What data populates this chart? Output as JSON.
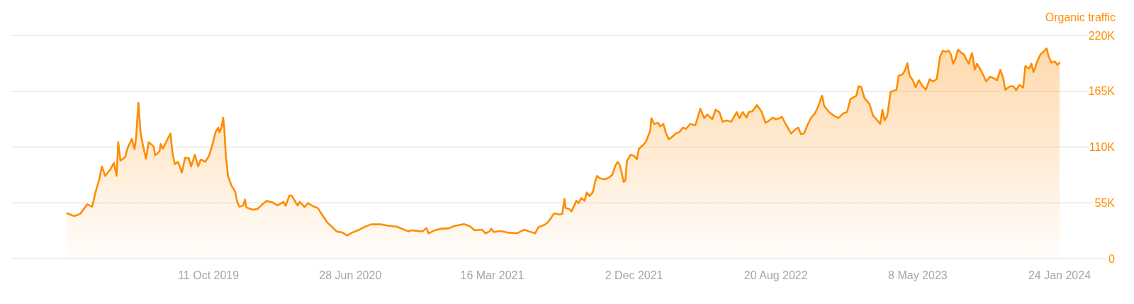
{
  "chart_data": {
    "type": "area",
    "ylabel": "Organic traffic",
    "xlim": [
      "2018-10-12",
      "2024-05-06"
    ],
    "xticks": [
      {
        "value": "2019-10-11",
        "label": "11 Oct 2019"
      },
      {
        "value": "2020-06-28",
        "label": "28 Jun 2020"
      },
      {
        "value": "2021-03-16",
        "label": "16 Mar 2021"
      },
      {
        "value": "2021-12-02",
        "label": "2 Dec 2021"
      },
      {
        "value": "2022-08-20",
        "label": "20 Aug 2022"
      },
      {
        "value": "2023-05-08",
        "label": "8 May 2023"
      },
      {
        "value": "2024-01-24",
        "label": "24 Jan 2024"
      }
    ],
    "ylim": [
      0,
      220000
    ],
    "yticks": [
      0,
      {
        "value": 55000,
        "label": "55K"
      },
      {
        "value": 110000,
        "label": "110K"
      },
      {
        "value": 165000,
        "label": "165K"
      },
      {
        "value": 220000,
        "label": "220K"
      }
    ],
    "grid": "y",
    "x": [
      "2019-01-24",
      "2019-02-06",
      "2019-02-17",
      "2019-03-02",
      "2019-03-11",
      "2019-03-17",
      "2019-03-24",
      "2019-03-29",
      "2019-04-04",
      "2019-04-14",
      "2019-04-20",
      "2019-04-25",
      "2019-04-28",
      "2019-05-02",
      "2019-05-11",
      "2019-05-15",
      "2019-05-23",
      "2019-05-28",
      "2019-05-31",
      "2019-06-04",
      "2019-06-08",
      "2019-06-12",
      "2019-06-18",
      "2019-06-23",
      "2019-07-02",
      "2019-07-05",
      "2019-07-13",
      "2019-07-15",
      "2019-07-19",
      "2019-07-28",
      "2019-08-02",
      "2019-08-06",
      "2019-08-10",
      "2019-08-16",
      "2019-08-23",
      "2019-08-29",
      "2019-09-05",
      "2019-09-09",
      "2019-09-16",
      "2019-09-22",
      "2019-09-27",
      "2019-10-05",
      "2019-10-12",
      "2019-10-18",
      "2019-10-24",
      "2019-10-29",
      "2019-10-31",
      "2019-11-04",
      "2019-11-07",
      "2019-11-09",
      "2019-11-12",
      "2019-11-16",
      "2019-11-22",
      "2019-11-29",
      "2019-12-03",
      "2019-12-07",
      "2019-12-14",
      "2019-12-17",
      "2019-12-20",
      "2019-12-31",
      "2020-01-09",
      "2020-01-18",
      "2020-01-26",
      "2020-02-06",
      "2020-02-15",
      "2020-02-26",
      "2020-03-01",
      "2020-03-08",
      "2020-03-12",
      "2020-03-19",
      "2020-03-23",
      "2020-03-27",
      "2020-04-05",
      "2020-04-11",
      "2020-04-22",
      "2020-04-29",
      "2020-05-08",
      "2020-05-16",
      "2020-05-25",
      "2020-06-03",
      "2020-06-14",
      "2020-06-22",
      "2020-07-01",
      "2020-07-12",
      "2020-07-23",
      "2020-08-05",
      "2020-08-22",
      "2020-09-04",
      "2020-09-22",
      "2020-10-13",
      "2020-10-18",
      "2020-11-08",
      "2020-11-15",
      "2020-11-19",
      "2020-11-30",
      "2020-12-13",
      "2020-12-26",
      "2021-01-04",
      "2021-01-23",
      "2021-02-03",
      "2021-02-12",
      "2021-02-25",
      "2021-03-04",
      "2021-03-12",
      "2021-03-14",
      "2021-03-19",
      "2021-04-01",
      "2021-04-14",
      "2021-05-01",
      "2021-05-14",
      "2021-05-23",
      "2021-06-03",
      "2021-06-09",
      "2021-06-22",
      "2021-06-27",
      "2021-07-03",
      "2021-07-08",
      "2021-07-18",
      "2021-07-23",
      "2021-07-27",
      "2021-07-29",
      "2021-08-05",
      "2021-08-09",
      "2021-08-18",
      "2021-08-22",
      "2021-08-27",
      "2021-09-02",
      "2021-09-06",
      "2021-09-11",
      "2021-09-17",
      "2021-09-22",
      "2021-09-25",
      "2021-09-30",
      "2021-10-09",
      "2021-10-18",
      "2021-10-23",
      "2021-10-29",
      "2021-11-02",
      "2021-11-06",
      "2021-11-13",
      "2021-11-16",
      "2021-11-19",
      "2021-11-26",
      "2021-12-02",
      "2021-12-07",
      "2021-12-11",
      "2021-12-18",
      "2021-12-24",
      "2021-12-29",
      "2022-01-01",
      "2022-01-03",
      "2022-01-08",
      "2022-01-15",
      "2022-01-19",
      "2022-01-25",
      "2022-01-30",
      "2022-02-04",
      "2022-02-10",
      "2022-02-17",
      "2022-02-23",
      "2022-03-02",
      "2022-03-08",
      "2022-03-15",
      "2022-03-25",
      "2022-04-03",
      "2022-04-10",
      "2022-04-16",
      "2022-04-25",
      "2022-05-01",
      "2022-05-08",
      "2022-05-14",
      "2022-05-21",
      "2022-05-30",
      "2022-06-09",
      "2022-06-14",
      "2022-06-20",
      "2022-06-27",
      "2022-07-01",
      "2022-07-08",
      "2022-07-16",
      "2022-07-21",
      "2022-07-25",
      "2022-08-01",
      "2022-08-05",
      "2022-08-14",
      "2022-08-20",
      "2022-08-27",
      "2022-08-31",
      "2022-09-07",
      "2022-09-17",
      "2022-09-24",
      "2022-09-30",
      "2022-10-05",
      "2022-10-11",
      "2022-10-18",
      "2022-10-24",
      "2022-10-31",
      "2022-11-06",
      "2022-11-13",
      "2022-11-17",
      "2022-11-26",
      "2022-12-05",
      "2022-12-13",
      "2022-12-22",
      "2022-12-29",
      "2023-01-04",
      "2023-01-11",
      "2023-01-15",
      "2023-01-19",
      "2023-01-24",
      "2023-01-30",
      "2023-02-08",
      "2023-02-15",
      "2023-02-21",
      "2023-02-28",
      "2023-03-04",
      "2023-03-08",
      "2023-03-13",
      "2023-03-19",
      "2023-03-24",
      "2023-03-30",
      "2023-04-03",
      "2023-04-10",
      "2023-04-14",
      "2023-04-19",
      "2023-04-23",
      "2023-04-29",
      "2023-05-04",
      "2023-05-10",
      "2023-05-17",
      "2023-05-23",
      "2023-05-30",
      "2023-06-05",
      "2023-06-12",
      "2023-06-18",
      "2023-06-23",
      "2023-06-29",
      "2023-07-04",
      "2023-07-08",
      "2023-07-12",
      "2023-07-17",
      "2023-07-21",
      "2023-07-28",
      "2023-08-01",
      "2023-08-05",
      "2023-08-10",
      "2023-08-12",
      "2023-08-16",
      "2023-08-21",
      "2023-08-25",
      "2023-08-29",
      "2023-09-05",
      "2023-09-11",
      "2023-09-18",
      "2023-09-24",
      "2023-10-01",
      "2023-10-07",
      "2023-10-12",
      "2023-10-16",
      "2023-10-25",
      "2023-10-31",
      "2023-11-05",
      "2023-11-11",
      "2023-11-18",
      "2023-11-22",
      "2023-11-29",
      "2023-12-03",
      "2023-12-07",
      "2023-12-14",
      "2023-12-20",
      "2023-12-27",
      "2023-12-31",
      "2024-01-04",
      "2024-01-09",
      "2024-01-15",
      "2024-01-20",
      "2024-01-24"
    ],
    "series": [
      {
        "color": "#ff8c00",
        "values": [
          44700,
          41900,
          44200,
          53500,
          51200,
          65100,
          78000,
          90800,
          81500,
          88400,
          94300,
          81500,
          114800,
          96600,
          100100,
          108800,
          118000,
          107900,
          119900,
          153700,
          124600,
          112900,
          98500,
          114800,
          110600,
          101700,
          105900,
          112900,
          108300,
          118000,
          123400,
          103600,
          93100,
          95400,
          84900,
          99400,
          98900,
          90800,
          102400,
          90800,
          97800,
          95400,
          101300,
          111800,
          124600,
          129200,
          124600,
          129200,
          139000,
          129200,
          101300,
          81500,
          72200,
          66300,
          55900,
          51200,
          52400,
          58200,
          50400,
          48300,
          48900,
          53500,
          57000,
          55400,
          52400,
          55900,
          52100,
          62200,
          62200,
          55900,
          52400,
          55900,
          50800,
          54700,
          51200,
          50000,
          42600,
          36100,
          31400,
          26800,
          25600,
          22800,
          25600,
          27900,
          31000,
          33800,
          33900,
          32600,
          31400,
          26800,
          27900,
          26800,
          30300,
          24900,
          27900,
          29600,
          29800,
          31900,
          34000,
          31900,
          27900,
          28600,
          24900,
          27200,
          29600,
          26300,
          27200,
          25600,
          25100,
          28600,
          26800,
          24900,
          31000,
          33800,
          36100,
          40700,
          44700,
          43500,
          44200,
          58900,
          50000,
          48900,
          46600,
          57000,
          54700,
          59800,
          57000,
          65200,
          61700,
          65200,
          76800,
          81500,
          79200,
          78000,
          80300,
          82600,
          92000,
          95400,
          92000,
          75700,
          76800,
          96600,
          102400,
          101300,
          97800,
          108300,
          111700,
          115200,
          122200,
          126900,
          138500,
          132700,
          133900,
          130400,
          132700,
          123400,
          117600,
          119900,
          123400,
          124600,
          129200,
          128000,
          132700,
          131500,
          147800,
          138500,
          142000,
          137400,
          146700,
          144400,
          135000,
          136200,
          135000,
          144400,
          138500,
          144400,
          139000,
          144400,
          145500,
          151300,
          147800,
          144400,
          133900,
          135000,
          139000,
          137400,
          138500,
          139700,
          132700,
          123400,
          126900,
          129200,
          122700,
          123400,
          132700,
          139000,
          143200,
          150200,
          160600,
          150200,
          144400,
          140800,
          138500,
          143200,
          144400,
          157100,
          159500,
          160600,
          169900,
          169200,
          158300,
          152500,
          140800,
          137400,
          132700,
          146700,
          136200,
          140800,
          164100,
          165300,
          166500,
          180400,
          181600,
          185100,
          192500,
          180400,
          175800,
          168800,
          175800,
          169900,
          166500,
          176900,
          174600,
          176900,
          199100,
          204900,
          203700,
          204900,
          201400,
          192100,
          197900,
          206000,
          202500,
          201400,
          196700,
          192100,
          196700,
          202500,
          186200,
          192100,
          188600,
          181600,
          174600,
          179300,
          178100,
          175800,
          186200,
          178100,
          166500,
          169900,
          169900,
          166000,
          171100,
          168800,
          189700,
          187400,
          192100,
          183900,
          194400,
          201400,
          204900,
          207200,
          199100,
          193200,
          194400,
          190900,
          193200
        ]
      }
    ]
  }
}
